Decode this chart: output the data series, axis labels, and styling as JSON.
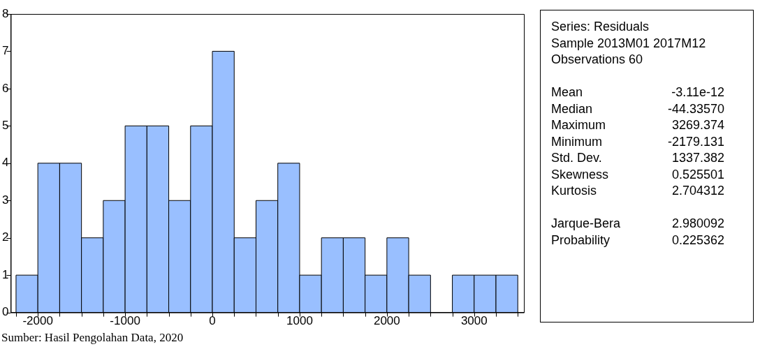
{
  "chart_data": [
    {
      "type": "histogram",
      "bins": [
        -2250,
        -2000,
        -1750,
        -1500,
        -1250,
        -1000,
        -750,
        -500,
        -250,
        0,
        250,
        500,
        750,
        1000,
        1250,
        1500,
        1750,
        2000,
        2250,
        2500,
        2750,
        3000,
        3250,
        3500
      ],
      "values": [
        1,
        4,
        4,
        2,
        3,
        5,
        5,
        3,
        5,
        7,
        2,
        3,
        4,
        1,
        2,
        2,
        1,
        2,
        1,
        0,
        1,
        1,
        1
      ],
      "color": "#99bfff",
      "xlim": [
        -2310,
        3570
      ],
      "xticks": [
        {
          "value": -2250,
          "label": null
        },
        -2000,
        {
          "value": -1750,
          "label": null
        },
        {
          "value": -1500,
          "label": null
        },
        {
          "value": -1250,
          "label": null
        },
        -1000,
        {
          "value": -750,
          "label": null
        },
        {
          "value": -500,
          "label": null
        },
        {
          "value": -250,
          "label": null
        },
        0,
        {
          "value": 250,
          "label": null
        },
        {
          "value": 500,
          "label": null
        },
        {
          "value": 750,
          "label": null
        },
        1000,
        {
          "value": 1250,
          "label": null
        },
        {
          "value": 1500,
          "label": null
        },
        {
          "value": 1750,
          "label": null
        },
        2000,
        {
          "value": 2250,
          "label": null
        },
        {
          "value": 2500,
          "label": null
        },
        {
          "value": 2750,
          "label": null
        },
        3000,
        {
          "value": 3250,
          "label": null
        },
        {
          "value": 3500,
          "label": null
        }
      ],
      "ylim": [
        0,
        8
      ],
      "yticks": [
        0,
        1,
        2,
        3,
        4,
        5,
        6,
        7,
        8
      ],
      "grid": false,
      "legend": false,
      "annotations": [
        "Sumber: Hasil Pengolahan Data, 2020"
      ]
    },
    {
      "type": "other",
      "annotations": [
        "Series: Residuals",
        "Sample 2013M01 2017M12",
        "Observations 60"
      ],
      "categories": [
        "Mean",
        "Median",
        "Maximum",
        "Minimum",
        "Std. Dev.",
        "Skewness",
        "Kurtosis",
        null,
        "Jarque-Bera",
        "Probability"
      ],
      "value_labels": [
        "-3.11e-12",
        "-44.33570",
        "3269.374",
        "-2179.131",
        "1337.382",
        "0.525501",
        "2.704312",
        null,
        "2.980092",
        "0.225362"
      ]
    }
  ]
}
